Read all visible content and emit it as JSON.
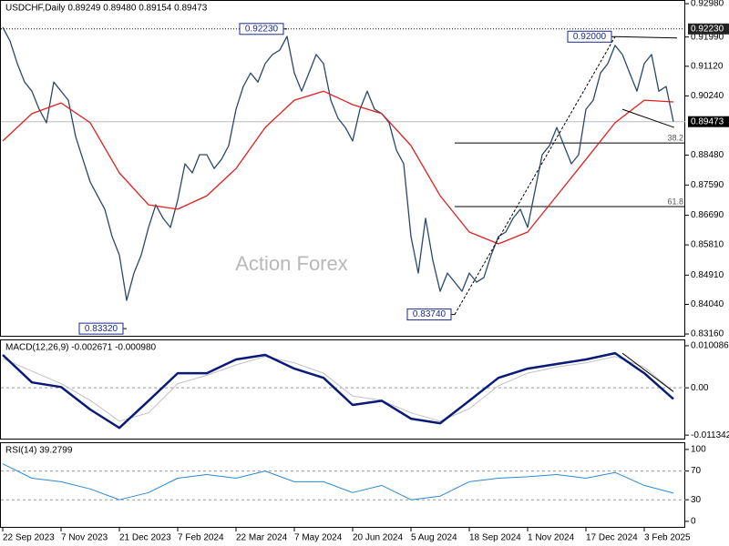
{
  "watermark": "Action Forex",
  "chart_data": [
    {
      "type": "line",
      "title": "USDCHF,Daily  0.89249 0.89480 0.89154 0.89473",
      "xlim": [
        0,
        93.5
      ],
      "ylim": [
        0.8308,
        0.9309
      ],
      "yticks": [
        {
          "value": 0.9298,
          "label": "0.92980"
        },
        {
          "value": 0.9199,
          "label": "0.91990"
        },
        {
          "value": 0.9112,
          "label": "0.91120"
        },
        {
          "value": 0.9024,
          "label": "0.90240"
        },
        {
          "value": 0.8848,
          "label": "0.88480"
        },
        {
          "value": 0.8759,
          "label": "0.87590"
        },
        {
          "value": 0.8669,
          "label": "0.86690"
        },
        {
          "value": 0.8581,
          "label": "0.85810"
        },
        {
          "value": 0.8491,
          "label": "0.84910"
        },
        {
          "value": 0.8404,
          "label": "0.84040"
        },
        {
          "value": 0.8316,
          "label": "0.83160"
        }
      ],
      "series": [
        {
          "color": "#2b4868",
          "x": [
            0,
            1,
            2,
            3,
            4,
            5,
            6,
            7,
            8,
            9,
            10,
            11,
            12,
            13,
            14,
            15,
            16,
            17,
            18,
            19,
            20,
            21,
            22,
            23,
            24,
            25,
            26,
            27,
            28,
            29,
            30,
            31,
            32,
            33,
            34,
            35,
            36,
            37,
            38,
            39,
            40,
            41,
            42,
            43,
            44,
            45,
            46,
            47,
            48,
            49,
            50,
            51,
            52,
            53,
            54,
            55,
            56,
            57,
            58,
            59,
            60,
            61,
            62,
            63,
            64,
            65,
            66,
            67,
            68,
            69,
            70,
            71,
            72,
            73,
            74,
            75,
            76,
            77,
            78,
            79,
            80,
            81,
            82,
            83,
            84,
            85,
            86,
            87,
            88,
            89,
            90,
            91,
            92
          ],
          "values": [
            0.9228,
            0.9187,
            0.912,
            0.9065,
            0.9038,
            0.8984,
            0.8944,
            0.9065,
            0.9038,
            0.9011,
            0.8903,
            0.8835,
            0.8768,
            0.8727,
            0.8687,
            0.8606,
            0.8551,
            0.8416,
            0.8497,
            0.8551,
            0.8633,
            0.87,
            0.866,
            0.8633,
            0.8714,
            0.8822,
            0.8795,
            0.8849,
            0.8849,
            0.8808,
            0.8835,
            0.8876,
            0.8984,
            0.9052,
            0.9092,
            0.9065,
            0.912,
            0.9147,
            0.916,
            0.9201,
            0.9092,
            0.9038,
            0.9092,
            0.9147,
            0.912,
            0.9011,
            0.8957,
            0.893,
            0.889,
            0.8984,
            0.9038,
            0.8984,
            0.8971,
            0.8944,
            0.8863,
            0.8822,
            0.8606,
            0.8497,
            0.866,
            0.8535,
            0.8443,
            0.8497,
            0.847,
            0.8443,
            0.8497,
            0.847,
            0.8484,
            0.8551,
            0.8606,
            0.8619,
            0.866,
            0.8687,
            0.8633,
            0.8741,
            0.8849,
            0.8876,
            0.893,
            0.8876,
            0.8822,
            0.8849,
            0.8984,
            0.9011,
            0.9092,
            0.912,
            0.9174,
            0.9147,
            0.9092,
            0.9038,
            0.912,
            0.9147,
            0.9038,
            0.9052,
            0.8947
          ]
        },
        {
          "color": "#e02020",
          "x": [
            0,
            4,
            8,
            12,
            16,
            20,
            24,
            28,
            32,
            36,
            40,
            44,
            48,
            52,
            56,
            60,
            64,
            68,
            72,
            76,
            80,
            84,
            88,
            92
          ],
          "values": [
            0.889,
            0.8971,
            0.9003,
            0.8944,
            0.8795,
            0.87,
            0.8687,
            0.8727,
            0.8808,
            0.893,
            0.9011,
            0.9038,
            0.8998,
            0.8971,
            0.8876,
            0.8727,
            0.8619,
            0.8584,
            0.8619,
            0.8727,
            0.8835,
            0.8944,
            0.9011,
            0.9006
          ]
        }
      ],
      "annotations": [
        {
          "x": 39,
          "value": 0.9223,
          "label": "0.92230"
        },
        {
          "x": 17,
          "value": 0.8332,
          "label": "0.83320"
        },
        {
          "x": 62,
          "value": 0.8374,
          "label": "0.83740"
        },
        {
          "x": 84,
          "value": 0.92,
          "label": "0.92000"
        }
      ],
      "reference_line": {
        "value": 0.9223,
        "label": "0.92230"
      },
      "last_price": {
        "value": 0.89473,
        "label": "0.89473"
      },
      "fib_levels": [
        {
          "ratio": 38.2,
          "value": 0.8884,
          "x": 62
        },
        {
          "ratio": 61.8,
          "value": 0.8695,
          "x": 62
        }
      ],
      "trendlines": [
        {
          "style": "dashed",
          "x": [
            62,
            84
          ],
          "values": [
            0.8374,
            0.92
          ]
        },
        {
          "style": "solid",
          "x": [
            84,
            92.5
          ],
          "values": [
            0.92,
            0.9196
          ]
        },
        {
          "style": "solid",
          "x": [
            85,
            92.1
          ],
          "values": [
            0.8984,
            0.893
          ]
        }
      ]
    },
    {
      "type": "line",
      "title": "MACD(12,26,9) -0.002671 -0.000980",
      "xlim": [
        0,
        93.5
      ],
      "ylim": [
        -0.0124,
        0.0116
      ],
      "yticks": [
        0.010086,
        {
          "value": 0,
          "label": "0.00"
        },
        -0.011342
      ],
      "levels": [
        0
      ],
      "series": [
        {
          "color": "#c0c0c0",
          "width": 1,
          "x": [
            0,
            4,
            8,
            12,
            16,
            20,
            24,
            28,
            32,
            36,
            40,
            44,
            48,
            52,
            56,
            60,
            64,
            68,
            72,
            76,
            80,
            84,
            88,
            92
          ],
          "values": [
            0.007,
            0.004,
            0.001,
            -0.003,
            -0.008,
            -0.006,
            0.001,
            0.003,
            0.0055,
            0.0075,
            0.006,
            0.0035,
            -0.002,
            -0.003,
            -0.006,
            -0.008,
            -0.005,
            0.0005,
            0.0035,
            0.005,
            0.006,
            0.0075,
            0.005,
            -0.001
          ]
        },
        {
          "color": "#0a1a78",
          "width": 2.5,
          "x": [
            0,
            4,
            8,
            12,
            16,
            20,
            24,
            28,
            32,
            36,
            40,
            44,
            48,
            52,
            56,
            60,
            64,
            68,
            72,
            76,
            80,
            84,
            88,
            92
          ],
          "values": [
            0.0079,
            0.0013,
            0.0002,
            -0.0052,
            -0.0096,
            -0.0031,
            0.0035,
            0.0035,
            0.0068,
            0.0079,
            0.0046,
            0.0024,
            -0.0041,
            -0.0031,
            -0.0074,
            -0.0085,
            -0.0031,
            0.0024,
            0.0046,
            0.0057,
            0.0068,
            0.0083,
            0.0035,
            -0.0027
          ]
        }
      ],
      "trendlines": [
        {
          "style": "solid",
          "x": [
            85,
            92
          ],
          "values": [
            0.0083,
            -0.0009
          ]
        }
      ]
    },
    {
      "type": "line",
      "title": "RSI(14) 39.2799",
      "xlim": [
        0,
        93.5
      ],
      "ylim": [
        -9,
        110
      ],
      "yticks": [
        100,
        70,
        30,
        0
      ],
      "levels": [
        70,
        30
      ],
      "xticks": [
        {
          "value": 0,
          "label": "22 Sep 2023"
        },
        {
          "value": 8,
          "label": "7 Nov 2023"
        },
        {
          "value": 16,
          "label": "21 Dec 2023"
        },
        {
          "value": 24,
          "label": "7 Feb 2024"
        },
        {
          "value": 32,
          "label": "22 Mar 2024"
        },
        {
          "value": 40,
          "label": "7 May 2024"
        },
        {
          "value": 48,
          "label": "20 Jun 2024"
        },
        {
          "value": 56,
          "label": "5 Aug 2024"
        },
        {
          "value": 64,
          "label": "18 Sep 2024"
        },
        {
          "value": 72,
          "label": "1 Nov 2024"
        },
        {
          "value": 80,
          "label": "17 Dec 2024"
        },
        {
          "value": 88,
          "label": "3 Feb 2025"
        }
      ],
      "series": [
        {
          "color": "#2a8ad8",
          "width": 1,
          "x": [
            0,
            4,
            8,
            12,
            16,
            20,
            24,
            28,
            32,
            36,
            40,
            44,
            48,
            52,
            56,
            60,
            64,
            68,
            72,
            76,
            80,
            84,
            88,
            92
          ],
          "values": [
            80,
            60,
            55,
            45,
            30,
            40,
            60,
            65,
            60,
            70,
            55,
            55,
            40,
            50,
            30,
            35,
            55,
            60,
            62,
            65,
            60,
            68,
            50,
            39.28
          ]
        }
      ]
    }
  ]
}
